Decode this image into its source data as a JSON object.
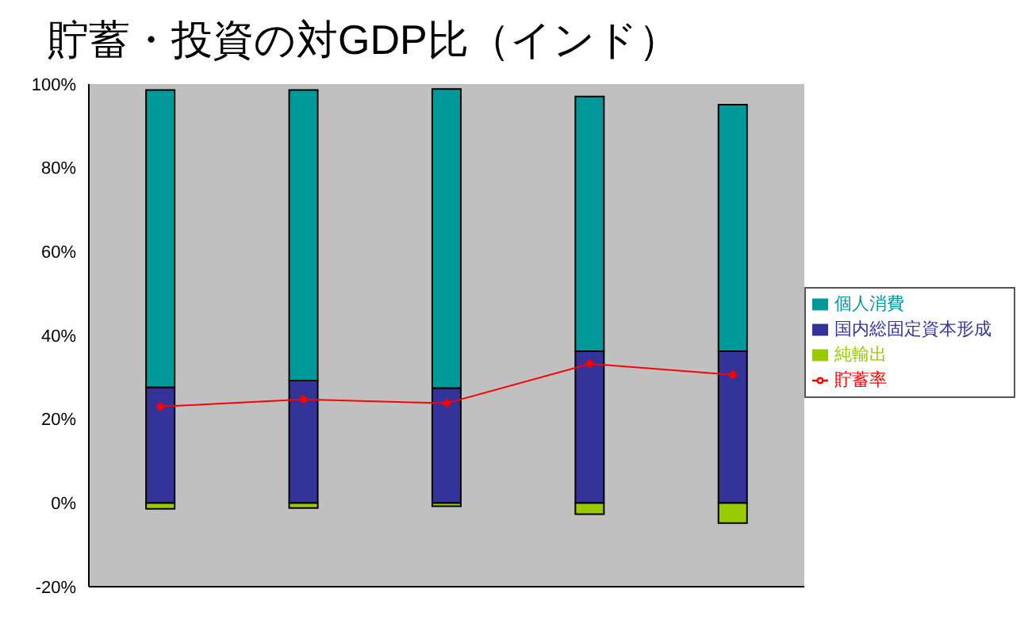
{
  "chart_data": {
    "type": "bar",
    "title": "貯蓄・投資の対GDP比（インド）",
    "categories": [
      null,
      null,
      null,
      null,
      null
    ],
    "stacked": true,
    "series": [
      {
        "name": "純輸出",
        "color": "#99cc00",
        "values": [
          -1.4,
          -1.2,
          -0.8,
          -2.7,
          -4.8
        ]
      },
      {
        "name": "国内総固定資本形成",
        "color": "#333399",
        "values": [
          27.6,
          29.2,
          27.4,
          36.2,
          36.2
        ]
      },
      {
        "name": "個人消費",
        "color": "#009999",
        "values": [
          71.0,
          69.4,
          71.4,
          60.8,
          58.9
        ]
      },
      {
        "name": "貯蓄率",
        "type": "line",
        "color": "#ff0000",
        "values": [
          23.0,
          24.7,
          23.8,
          33.2,
          30.6
        ]
      }
    ],
    "ylim": [
      -20,
      100
    ],
    "yticks": [
      {
        "value": -20,
        "label": "-20%"
      },
      {
        "value": 0,
        "label": "0%"
      },
      {
        "value": 20,
        "label": "20%"
      },
      {
        "value": 40,
        "label": "40%"
      },
      {
        "value": 60,
        "label": "60%"
      },
      {
        "value": 80,
        "label": "80%"
      },
      {
        "value": 100,
        "label": "100%"
      }
    ],
    "grid": false,
    "legend": "right",
    "tick_labels": "y",
    "marker": "diamond",
    "line_style": "solid"
  }
}
